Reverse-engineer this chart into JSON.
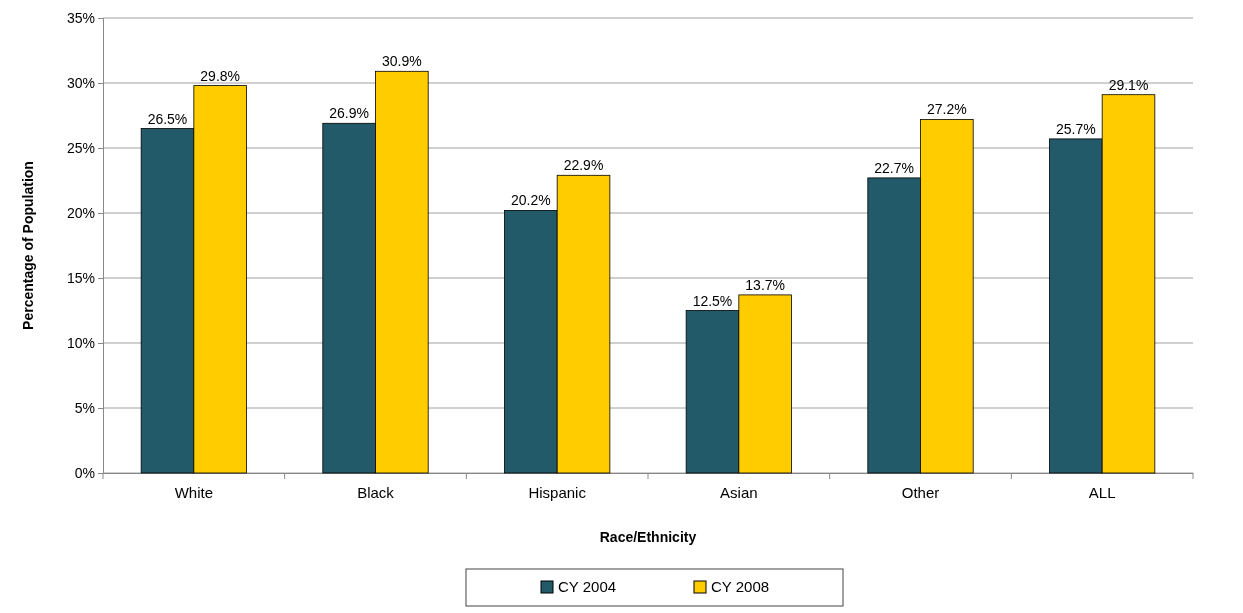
{
  "chart_data": {
    "type": "bar",
    "xlabel": "Race/Ethnicity",
    "ylabel": "Percentage of Population",
    "categories": [
      "White",
      "Black",
      "Hispanic",
      "Asian",
      "Other",
      "ALL"
    ],
    "series": [
      {
        "name": "CY 2004",
        "color": "#235a69",
        "values": [
          26.5,
          26.9,
          20.2,
          12.5,
          22.7,
          25.7
        ]
      },
      {
        "name": "CY 2008",
        "color": "#ffcc00",
        "values": [
          29.8,
          30.9,
          22.9,
          13.7,
          27.2,
          29.1
        ]
      }
    ],
    "ylim": [
      0,
      35
    ],
    "yticks": [
      {
        "value": 0,
        "label": "0%"
      },
      {
        "value": 5,
        "label": "5%"
      },
      {
        "value": 10,
        "label": "10%"
      },
      {
        "value": 15,
        "label": "15%"
      },
      {
        "value": 20,
        "label": "20%"
      },
      {
        "value": 25,
        "label": "25%"
      },
      {
        "value": 30,
        "label": "30%"
      },
      {
        "value": 35,
        "label": "35%"
      }
    ],
    "value_labels": [
      [
        "26.5%",
        "26.9%",
        "20.2%",
        "12.5%",
        "22.7%",
        "25.7%"
      ],
      [
        "29.8%",
        "30.9%",
        "22.9%",
        "13.7%",
        "27.2%",
        "29.1%"
      ]
    ],
    "grid": "y",
    "legend": "bottom"
  }
}
